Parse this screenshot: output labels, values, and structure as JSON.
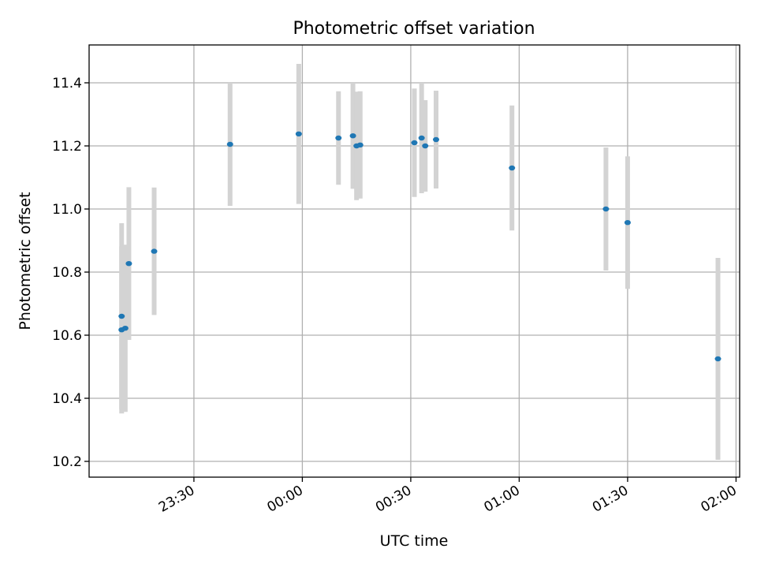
{
  "chart_data": {
    "type": "scatter",
    "title": "Photometric offset variation",
    "xlabel": "UTC time",
    "ylabel": "Photometric offset",
    "x_unit": "UTC time (HH:MM), night crossing midnight",
    "x_ticks": [
      "23:30",
      "00:00",
      "00:30",
      "01:00",
      "01:30",
      "02:00"
    ],
    "y_ticks": [
      "10.2",
      "10.4",
      "10.6",
      "10.8",
      "11.0",
      "11.2",
      "11.4"
    ],
    "xlim": [
      "23:01",
      "02:01"
    ],
    "ylim": [
      10.15,
      11.52
    ],
    "grid": true,
    "colors": {
      "marker": "#1f77b4",
      "errorbar": "#d3d3d3",
      "grid": "#b0b0b0"
    },
    "series": [
      {
        "points": [
          {
            "x": "23:10",
            "y": 10.66,
            "err": 0.295
          },
          {
            "x": "23:10",
            "y": 10.617,
            "err": 0.265
          },
          {
            "x": "23:11",
            "y": 10.622,
            "err": 0.265
          },
          {
            "x": "23:12",
            "y": 10.827,
            "err": 0.242
          },
          {
            "x": "23:19",
            "y": 10.866,
            "err": 0.202
          },
          {
            "x": "23:40",
            "y": 11.205,
            "err": 0.195
          },
          {
            "x": "23:59",
            "y": 11.238,
            "err": 0.222
          },
          {
            "x": "00:10",
            "y": 11.225,
            "err": 0.148
          },
          {
            "x": "00:14",
            "y": 11.232,
            "err": 0.168
          },
          {
            "x": "00:15",
            "y": 11.2,
            "err": 0.172
          },
          {
            "x": "00:16",
            "y": 11.203,
            "err": 0.17
          },
          {
            "x": "00:31",
            "y": 11.21,
            "err": 0.172
          },
          {
            "x": "00:33",
            "y": 11.225,
            "err": 0.175
          },
          {
            "x": "00:34",
            "y": 11.2,
            "err": 0.145
          },
          {
            "x": "00:37",
            "y": 11.22,
            "err": 0.155
          },
          {
            "x": "00:58",
            "y": 11.13,
            "err": 0.198
          },
          {
            "x": "01:24",
            "y": 11.0,
            "err": 0.195
          },
          {
            "x": "01:30",
            "y": 10.957,
            "err": 0.21
          },
          {
            "x": "01:55",
            "y": 10.525,
            "err": 0.32
          }
        ]
      }
    ]
  }
}
